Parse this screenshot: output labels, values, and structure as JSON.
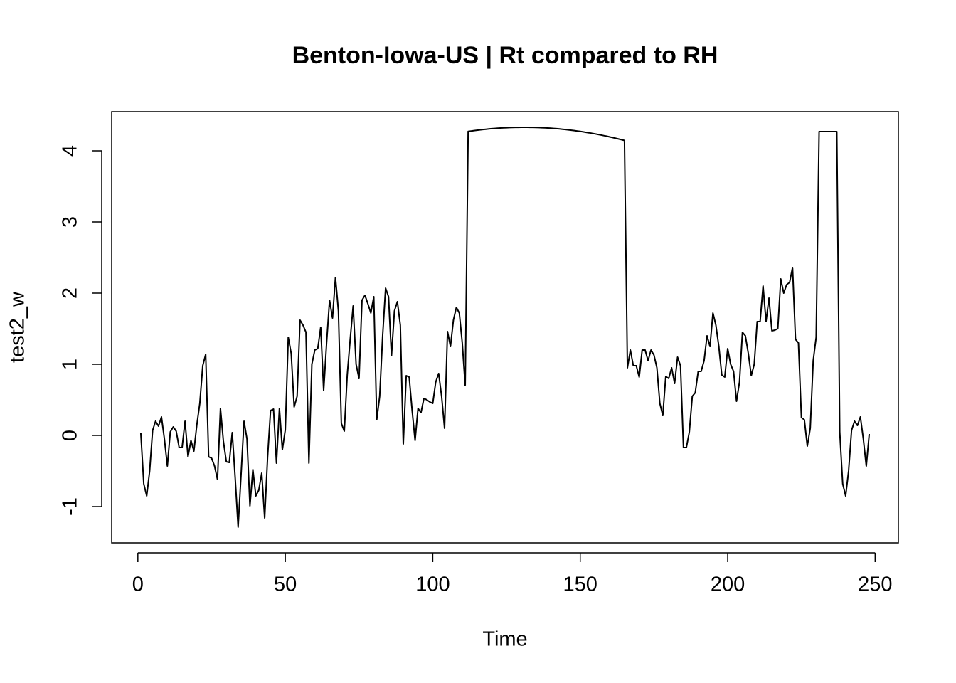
{
  "chart_data": {
    "type": "line",
    "title": "Benton-Iowa-US | Rt compared to RH",
    "xlabel": "Time",
    "ylabel": "test2_w",
    "color": "#000000",
    "xlim": [
      -8.88,
      257.88
    ],
    "ylim": [
      -1.51,
      4.55
    ],
    "xticks": [
      0,
      50,
      100,
      150,
      200,
      250
    ],
    "yticks": [
      -1,
      0,
      1,
      2,
      3,
      4
    ],
    "x": [
      1,
      2,
      3,
      4,
      5,
      6,
      7,
      8,
      9,
      10,
      11,
      12,
      13,
      14,
      15,
      16,
      17,
      18,
      19,
      20,
      21,
      22,
      23,
      24,
      25,
      26,
      27,
      28,
      29,
      30,
      31,
      32,
      33,
      34,
      35,
      36,
      37,
      38,
      39,
      40,
      41,
      42,
      43,
      44,
      45,
      46,
      47,
      48,
      49,
      50,
      51,
      52,
      53,
      54,
      55,
      56,
      57,
      58,
      59,
      60,
      61,
      62,
      63,
      64,
      65,
      66,
      67,
      68,
      69,
      70,
      71,
      72,
      73,
      74,
      75,
      76,
      77,
      78,
      79,
      80,
      81,
      82,
      83,
      84,
      85,
      86,
      87,
      88,
      89,
      90,
      91,
      92,
      93,
      94,
      95,
      96,
      97,
      98,
      99,
      100,
      101,
      102,
      103,
      104,
      105,
      106,
      107,
      108,
      109,
      110,
      111,
      112,
      113,
      114,
      115,
      116,
      117,
      118,
      119,
      120,
      121,
      122,
      123,
      124,
      125,
      126,
      127,
      128,
      129,
      130,
      131,
      132,
      133,
      134,
      135,
      136,
      137,
      138,
      139,
      140,
      141,
      142,
      143,
      144,
      145,
      146,
      147,
      148,
      149,
      150,
      151,
      152,
      153,
      154,
      155,
      156,
      157,
      158,
      159,
      160,
      161,
      162,
      163,
      164,
      165,
      166,
      167,
      168,
      169,
      170,
      171,
      172,
      173,
      174,
      175,
      176,
      177,
      178,
      179,
      180,
      181,
      182,
      183,
      184,
      185,
      186,
      187,
      188,
      189,
      190,
      191,
      192,
      193,
      194,
      195,
      196,
      197,
      198,
      199,
      200,
      201,
      202,
      203,
      204,
      205,
      206,
      207,
      208,
      209,
      210,
      211,
      212,
      213,
      214,
      215,
      216,
      217,
      218,
      219,
      220,
      221,
      222,
      223,
      224,
      225,
      226,
      227,
      228,
      229,
      230,
      231,
      232,
      233,
      234,
      235,
      236,
      237,
      238,
      239,
      240,
      241,
      242,
      243,
      244,
      245,
      246,
      247,
      248
    ],
    "values": [
      0.03,
      -0.68,
      -0.85,
      -0.5,
      0.07,
      0.2,
      0.13,
      0.26,
      -0.05,
      -0.43,
      0.05,
      0.12,
      0.06,
      -0.17,
      -0.17,
      0.2,
      -0.3,
      -0.07,
      -0.22,
      0.15,
      0.45,
      0.98,
      1.14,
      -0.3,
      -0.32,
      -0.43,
      -0.62,
      0.38,
      -0.08,
      -0.37,
      -0.38,
      0.04,
      -0.6,
      -1.29,
      -0.55,
      0.2,
      -0.05,
      -0.99,
      -0.48,
      -0.85,
      -0.77,
      -0.53,
      -1.16,
      -0.3,
      0.35,
      0.37,
      -0.39,
      0.38,
      -0.2,
      0.08,
      1.38,
      1.15,
      0.4,
      0.55,
      1.62,
      1.55,
      1.45,
      -0.39,
      1.0,
      1.2,
      1.22,
      1.52,
      0.63,
      1.3,
      1.9,
      1.65,
      2.22,
      1.75,
      0.17,
      0.06,
      0.85,
      1.35,
      1.82,
      1.0,
      0.8,
      1.9,
      1.97,
      1.85,
      1.72,
      1.95,
      0.22,
      0.55,
      1.4,
      2.07,
      1.95,
      1.12,
      1.75,
      1.88,
      1.55,
      -0.12,
      0.84,
      0.82,
      0.35,
      -0.07,
      0.38,
      0.32,
      0.52,
      0.5,
      0.47,
      0.45,
      0.75,
      0.87,
      0.55,
      0.1,
      1.46,
      1.25,
      1.62,
      1.8,
      1.72,
      1.3,
      0.7,
      4.272,
      4.278,
      4.284,
      4.289,
      4.294,
      4.299,
      4.303,
      4.307,
      4.311,
      4.314,
      4.317,
      4.32,
      4.322,
      4.324,
      4.326,
      4.327,
      4.329,
      4.329,
      4.33,
      4.33,
      4.33,
      4.329,
      4.329,
      4.327,
      4.326,
      4.324,
      4.322,
      4.32,
      4.317,
      4.314,
      4.311,
      4.307,
      4.303,
      4.299,
      4.294,
      4.289,
      4.284,
      4.278,
      4.272,
      4.266,
      4.259,
      4.253,
      4.245,
      4.238,
      4.23,
      4.222,
      4.213,
      4.205,
      4.195,
      4.186,
      4.176,
      4.166,
      4.156,
      4.145,
      0.95,
      1.2,
      0.98,
      0.98,
      0.82,
      1.2,
      1.2,
      1.05,
      1.2,
      1.13,
      0.95,
      0.45,
      0.28,
      0.83,
      0.8,
      0.95,
      0.73,
      1.1,
      0.98,
      -0.17,
      -0.17,
      0.05,
      0.55,
      0.6,
      0.9,
      0.9,
      1.05,
      1.4,
      1.25,
      1.72,
      1.55,
      1.25,
      0.85,
      0.82,
      1.22,
      1.0,
      0.9,
      0.48,
      0.75,
      1.45,
      1.4,
      1.15,
      0.84,
      1.0,
      1.6,
      1.6,
      2.1,
      1.6,
      1.93,
      1.47,
      1.48,
      1.5,
      2.2,
      2.0,
      2.12,
      2.15,
      2.36,
      1.35,
      1.3,
      0.25,
      0.22,
      -0.15,
      0.1,
      1.05,
      1.38,
      4.27,
      4.27,
      4.27,
      4.27,
      4.27,
      4.27,
      4.27,
      0.05,
      -0.68,
      -0.85,
      -0.5,
      0.07,
      0.2,
      0.14,
      0.26,
      -0.05,
      -0.43,
      0.02
    ]
  }
}
